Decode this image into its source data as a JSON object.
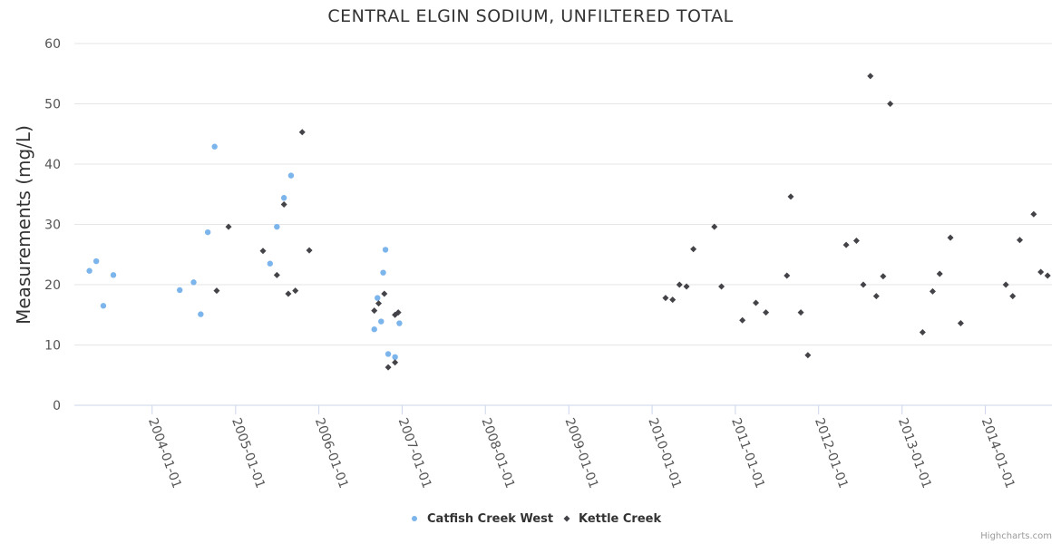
{
  "chart_data": {
    "type": "scatter",
    "title": "CENTRAL ELGIN SODIUM, UNFILTERED TOTAL",
    "xlabel": "",
    "ylabel": "Measurements (mg/L)",
    "ylim": [
      0,
      60
    ],
    "yticks": [
      0,
      10,
      20,
      30,
      40,
      50,
      60
    ],
    "xlim": [
      "2003-01-25",
      "2014-10-20"
    ],
    "xticks": [
      "2004-01-01",
      "2005-01-01",
      "2006-01-01",
      "2007-01-01",
      "2008-01-01",
      "2009-01-01",
      "2010-01-01",
      "2011-01-01",
      "2012-01-01",
      "2013-01-01",
      "2014-01-01"
    ],
    "grid": "horizontal",
    "legend": "bottom-center",
    "series": [
      {
        "name": "Catfish Creek West",
        "color": "#7cb5ec",
        "marker": "circle",
        "points": [
          [
            "2003-04-01",
            22.3
          ],
          [
            "2003-05-01",
            23.9
          ],
          [
            "2003-06-01",
            16.5
          ],
          [
            "2003-07-15",
            21.6
          ],
          [
            "2004-05-01",
            19.1
          ],
          [
            "2004-07-01",
            20.4
          ],
          [
            "2004-08-01",
            15.1
          ],
          [
            "2004-09-01",
            28.7
          ],
          [
            "2004-10-01",
            42.9
          ],
          [
            "2005-06-01",
            23.5
          ],
          [
            "2005-07-01",
            29.6
          ],
          [
            "2005-08-01",
            34.4
          ],
          [
            "2005-09-01",
            38.1
          ],
          [
            "2006-09-01",
            12.6
          ],
          [
            "2006-09-15",
            17.8
          ],
          [
            "2006-10-01",
            13.9
          ],
          [
            "2006-10-10",
            22.0
          ],
          [
            "2006-10-20",
            25.8
          ],
          [
            "2006-11-01",
            8.5
          ],
          [
            "2006-12-01",
            8.0
          ],
          [
            "2006-12-20",
            13.6
          ]
        ]
      },
      {
        "name": "Kettle Creek",
        "color": "#434348",
        "marker": "diamond",
        "points": [
          [
            "2004-10-10",
            19.0
          ],
          [
            "2004-12-01",
            29.6
          ],
          [
            "2005-05-01",
            25.6
          ],
          [
            "2005-07-01",
            21.6
          ],
          [
            "2005-08-01",
            33.3
          ],
          [
            "2005-08-20",
            18.5
          ],
          [
            "2005-09-20",
            19.0
          ],
          [
            "2005-10-20",
            45.3
          ],
          [
            "2005-11-20",
            25.7
          ],
          [
            "2006-09-01",
            15.7
          ],
          [
            "2006-09-20",
            16.9
          ],
          [
            "2006-10-15",
            18.5
          ],
          [
            "2006-11-01",
            6.3
          ],
          [
            "2006-12-01",
            7.1
          ],
          [
            "2006-12-01",
            15.0
          ],
          [
            "2006-12-15",
            15.4
          ],
          [
            "2010-03-01",
            17.8
          ],
          [
            "2010-04-01",
            17.5
          ],
          [
            "2010-05-01",
            20.0
          ],
          [
            "2010-06-01",
            19.7
          ],
          [
            "2010-07-01",
            25.9
          ],
          [
            "2010-10-01",
            29.6
          ],
          [
            "2010-11-01",
            19.7
          ],
          [
            "2011-02-01",
            14.1
          ],
          [
            "2011-04-01",
            17.0
          ],
          [
            "2011-05-15",
            15.4
          ],
          [
            "2011-08-15",
            21.5
          ],
          [
            "2011-09-01",
            34.6
          ],
          [
            "2011-10-15",
            15.4
          ],
          [
            "2011-11-15",
            8.3
          ],
          [
            "2012-05-01",
            26.6
          ],
          [
            "2012-06-15",
            27.3
          ],
          [
            "2012-07-15",
            20.0
          ],
          [
            "2012-08-15",
            54.6
          ],
          [
            "2012-09-10",
            18.1
          ],
          [
            "2012-10-10",
            21.4
          ],
          [
            "2012-11-10",
            50.0
          ],
          [
            "2013-04-01",
            12.1
          ],
          [
            "2013-05-15",
            18.9
          ],
          [
            "2013-06-15",
            21.8
          ],
          [
            "2013-08-01",
            27.8
          ],
          [
            "2013-09-15",
            13.6
          ],
          [
            "2014-04-01",
            20.0
          ],
          [
            "2014-05-01",
            18.1
          ],
          [
            "2014-06-01",
            27.4
          ],
          [
            "2014-08-01",
            31.7
          ],
          [
            "2014-09-01",
            22.1
          ],
          [
            "2014-10-01",
            21.5
          ]
        ]
      }
    ]
  },
  "credits": "Highcharts.com"
}
